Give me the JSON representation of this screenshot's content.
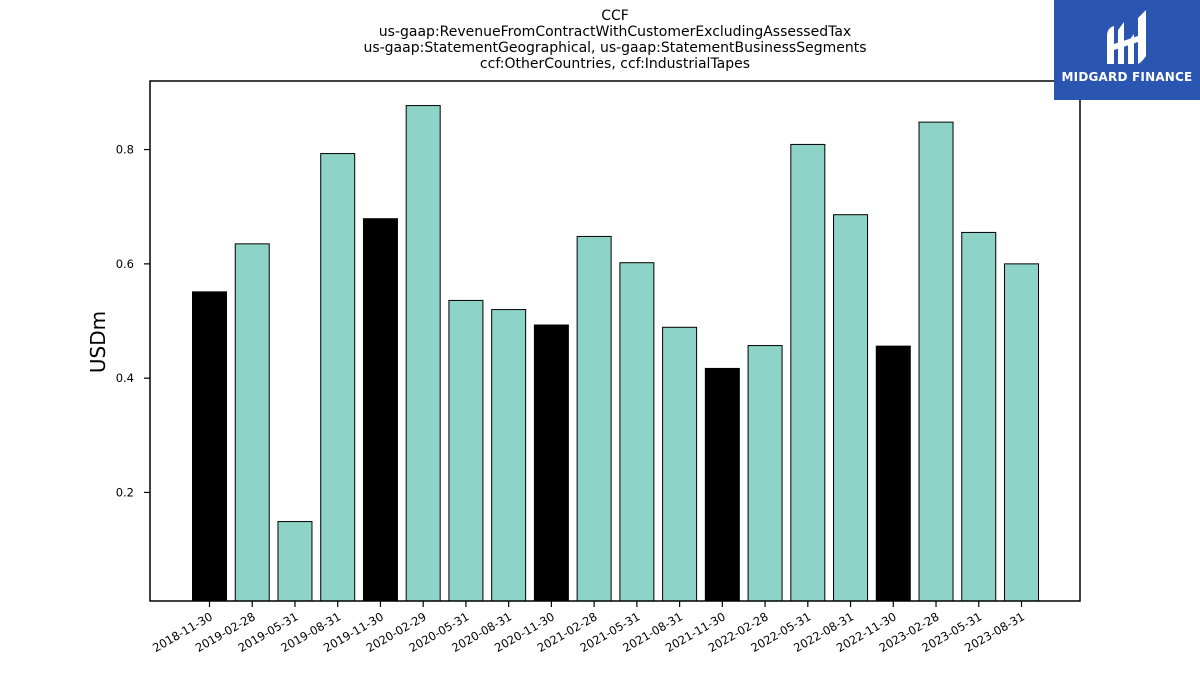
{
  "chart_data": {
    "type": "bar",
    "title_lines": [
      "CCF",
      "us-gaap:RevenueFromContractWithCustomerExcludingAssessedTax",
      "us-gaap:StatementGeographical, us-gaap:StatementBusinessSegments",
      "ccf:OtherCountries, ccf:IndustrialTapes"
    ],
    "xlabel": "",
    "ylabel": "USDm",
    "ylim": [
      0.01,
      0.92
    ],
    "yticks": [
      0.2,
      0.4,
      0.6,
      0.8
    ],
    "ytick_labels": [
      "0.2",
      "0.4",
      "0.6",
      "0.8"
    ],
    "categories": [
      "2018-11-30",
      "2019-02-28",
      "2019-05-31",
      "2019-08-31",
      "2019-11-30",
      "2020-02-29",
      "2020-05-31",
      "2020-08-31",
      "2020-11-30",
      "2021-02-28",
      "2021-05-31",
      "2021-08-31",
      "2021-11-30",
      "2022-02-28",
      "2022-05-31",
      "2022-08-31",
      "2022-11-30",
      "2023-02-28",
      "2023-05-31",
      "2023-08-31"
    ],
    "values": [
      0.551,
      0.635,
      0.149,
      0.793,
      0.679,
      0.877,
      0.536,
      0.52,
      0.493,
      0.648,
      0.602,
      0.489,
      0.417,
      0.457,
      0.809,
      0.686,
      0.456,
      0.848,
      0.655,
      0.6
    ],
    "highlight": [
      true,
      false,
      false,
      false,
      true,
      false,
      false,
      false,
      true,
      false,
      false,
      false,
      true,
      false,
      false,
      false,
      true,
      false,
      false,
      false
    ],
    "colors": {
      "normal": "#8dd3c7",
      "highlight": "#000000",
      "edge": "#000000"
    },
    "grid": false,
    "legend": "none"
  },
  "logo": {
    "text": "MIDGARD FINANCE",
    "background": "#2a55b0",
    "icon": "midgard-logo-icon"
  }
}
